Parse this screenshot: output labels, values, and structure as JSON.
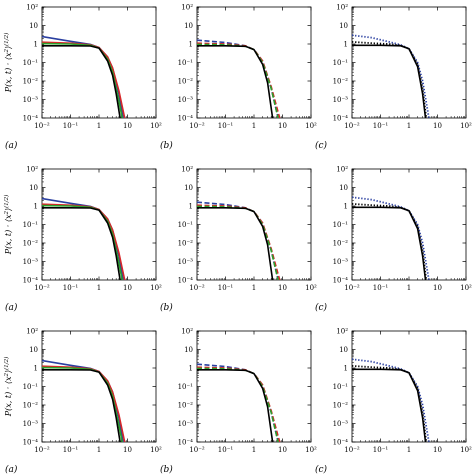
{
  "figure": {
    "ylabel_base": "P(x, t) · ⟨x",
    "ylabel_sup1": "2",
    "ylabel_close": "⟩",
    "ylabel_sup2": "(1/2)",
    "panel_letters": [
      "(a)",
      "(b)",
      "(c)"
    ]
  },
  "axes": {
    "type": "log-log",
    "xlim": [
      0.01,
      100
    ],
    "ylim": [
      0.0001,
      100
    ],
    "x_ticks": [
      0.01,
      0.1,
      1,
      10,
      100
    ],
    "x_tick_labels": [
      "10⁻²",
      "10⁻¹",
      "1",
      "10",
      "10²"
    ],
    "y_ticks": [
      0.0001,
      0.001,
      0.01,
      0.1,
      1,
      10,
      100
    ],
    "y_tick_labels": [
      "10⁻⁴",
      "10⁻³",
      "10⁻²",
      "10⁻¹",
      "1",
      "10",
      "10²"
    ],
    "grid": false
  },
  "chart_data": [
    {
      "type": "line",
      "panel": "(a)",
      "row": 0,
      "col": 0,
      "xlim": [
        0.01,
        100
      ],
      "ylim": [
        0.0001,
        100
      ],
      "xscale": "log",
      "yscale": "log",
      "series": [
        {
          "color": "#2a3fa0",
          "style": "solid",
          "x": [
            0.01,
            0.1,
            0.5,
            1,
            2,
            3,
            5,
            7
          ],
          "y": [
            2.5,
            1.4,
            0.95,
            0.65,
            0.2,
            0.05,
            0.002,
            0.0001
          ]
        },
        {
          "color": "#d62728",
          "style": "solid",
          "x": [
            0.01,
            0.1,
            0.5,
            1,
            2,
            3,
            5,
            8
          ],
          "y": [
            1.25,
            1.1,
            0.9,
            0.65,
            0.2,
            0.05,
            0.003,
            0.0001
          ]
        },
        {
          "color": "#2ca02c",
          "style": "solid",
          "x": [
            0.01,
            0.1,
            0.5,
            1,
            2,
            3,
            5,
            6.5
          ],
          "y": [
            1.05,
            1.0,
            0.85,
            0.6,
            0.15,
            0.03,
            0.0008,
            0.0001
          ]
        },
        {
          "color": "#000000",
          "style": "solid",
          "x": [
            0.01,
            0.1,
            0.5,
            1,
            2,
            3,
            4,
            5.5
          ],
          "y": [
            0.8,
            0.8,
            0.78,
            0.6,
            0.12,
            0.02,
            0.002,
            0.0001
          ]
        }
      ]
    },
    {
      "type": "line",
      "panel": "(b)",
      "row": 0,
      "col": 1,
      "xlim": [
        0.01,
        100
      ],
      "ylim": [
        0.0001,
        100
      ],
      "xscale": "log",
      "yscale": "log",
      "series": [
        {
          "color": "#2a3fa0",
          "style": "dashed",
          "x": [
            0.01,
            0.1,
            0.5,
            1,
            2,
            4,
            7
          ],
          "y": [
            1.6,
            1.2,
            0.8,
            0.5,
            0.12,
            0.004,
            0.0001
          ]
        },
        {
          "color": "#d62728",
          "style": "dashed",
          "x": [
            0.01,
            0.1,
            0.5,
            1,
            2,
            4,
            8
          ],
          "y": [
            1.1,
            1.0,
            0.8,
            0.5,
            0.12,
            0.005,
            0.0001
          ]
        },
        {
          "color": "#2ca02c",
          "style": "dashed",
          "x": [
            0.01,
            0.1,
            0.5,
            1,
            2,
            4,
            7
          ],
          "y": [
            0.95,
            0.9,
            0.75,
            0.5,
            0.1,
            0.004,
            0.0001
          ]
        },
        {
          "color": "#000000",
          "style": "solid",
          "x": [
            0.01,
            0.1,
            0.5,
            1,
            2,
            3,
            4.5
          ],
          "y": [
            0.8,
            0.8,
            0.75,
            0.5,
            0.08,
            0.008,
            0.0001
          ]
        }
      ]
    },
    {
      "type": "line",
      "panel": "(c)",
      "row": 0,
      "col": 2,
      "xlim": [
        0.01,
        100
      ],
      "ylim": [
        0.0001,
        100
      ],
      "xscale": "log",
      "yscale": "log",
      "series": [
        {
          "color": "#2a3fa0",
          "style": "dotted",
          "x": [
            0.01,
            0.05,
            0.2,
            0.5,
            1,
            2,
            3,
            5
          ],
          "y": [
            3,
            2.2,
            1.3,
            0.9,
            0.55,
            0.1,
            0.01,
            0.0001
          ]
        },
        {
          "color": "#000000",
          "style": "dotted",
          "x": [
            0.01,
            0.05,
            0.2,
            0.5,
            1,
            2,
            3,
            4
          ],
          "y": [
            1.3,
            1.1,
            1.0,
            0.85,
            0.55,
            0.08,
            0.004,
            0.0001
          ]
        },
        {
          "color": "#000000",
          "style": "solid",
          "x": [
            0.01,
            0.1,
            0.5,
            1,
            2,
            3,
            3.8
          ],
          "y": [
            0.85,
            0.85,
            0.8,
            0.55,
            0.06,
            0.002,
            0.0001
          ]
        }
      ]
    },
    {
      "type": "line",
      "panel": "(a)",
      "row": 1,
      "col": 0,
      "xlim": [
        0.01,
        100
      ],
      "ylim": [
        0.0001,
        100
      ],
      "xscale": "log",
      "yscale": "log",
      "series": [
        {
          "color": "#2a3fa0",
          "style": "solid",
          "x": [
            0.01,
            0.1,
            0.5,
            1,
            2,
            3,
            5,
            7
          ],
          "y": [
            2.5,
            1.4,
            0.95,
            0.65,
            0.2,
            0.05,
            0.002,
            0.0001
          ]
        },
        {
          "color": "#d62728",
          "style": "solid",
          "x": [
            0.01,
            0.1,
            0.5,
            1,
            2,
            3,
            5,
            8
          ],
          "y": [
            1.25,
            1.1,
            0.9,
            0.65,
            0.2,
            0.05,
            0.003,
            0.0001
          ]
        },
        {
          "color": "#2ca02c",
          "style": "solid",
          "x": [
            0.01,
            0.1,
            0.5,
            1,
            2,
            3,
            5,
            6.5
          ],
          "y": [
            1.05,
            1.0,
            0.85,
            0.6,
            0.15,
            0.03,
            0.0008,
            0.0001
          ]
        },
        {
          "color": "#000000",
          "style": "solid",
          "x": [
            0.01,
            0.1,
            0.5,
            1,
            2,
            3,
            4,
            5.5
          ],
          "y": [
            0.8,
            0.8,
            0.78,
            0.6,
            0.12,
            0.02,
            0.002,
            0.0001
          ]
        }
      ]
    },
    {
      "type": "line",
      "panel": "(b)",
      "row": 1,
      "col": 1,
      "xlim": [
        0.01,
        100
      ],
      "ylim": [
        0.0001,
        100
      ],
      "xscale": "log",
      "yscale": "log",
      "series": [
        {
          "color": "#2a3fa0",
          "style": "dashed",
          "x": [
            0.01,
            0.1,
            0.5,
            1,
            2,
            4,
            7
          ],
          "y": [
            1.6,
            1.2,
            0.8,
            0.5,
            0.12,
            0.004,
            0.0001
          ]
        },
        {
          "color": "#d62728",
          "style": "dashed",
          "x": [
            0.01,
            0.1,
            0.5,
            1,
            2,
            4,
            8
          ],
          "y": [
            1.1,
            1.0,
            0.8,
            0.5,
            0.12,
            0.005,
            0.0001
          ]
        },
        {
          "color": "#2ca02c",
          "style": "dashed",
          "x": [
            0.01,
            0.1,
            0.5,
            1,
            2,
            4,
            7
          ],
          "y": [
            0.95,
            0.9,
            0.75,
            0.5,
            0.1,
            0.004,
            0.0001
          ]
        },
        {
          "color": "#000000",
          "style": "solid",
          "x": [
            0.01,
            0.1,
            0.5,
            1,
            2,
            3,
            4.5
          ],
          "y": [
            0.8,
            0.8,
            0.75,
            0.5,
            0.08,
            0.008,
            0.0001
          ]
        }
      ]
    },
    {
      "type": "line",
      "panel": "(c)",
      "row": 1,
      "col": 2,
      "xlim": [
        0.01,
        100
      ],
      "ylim": [
        0.0001,
        100
      ],
      "xscale": "log",
      "yscale": "log",
      "series": [
        {
          "color": "#2a3fa0",
          "style": "dotted",
          "x": [
            0.01,
            0.05,
            0.2,
            0.5,
            1,
            2,
            3,
            5
          ],
          "y": [
            3,
            2.2,
            1.3,
            0.9,
            0.55,
            0.1,
            0.01,
            0.0001
          ]
        },
        {
          "color": "#000000",
          "style": "dotted",
          "x": [
            0.01,
            0.05,
            0.2,
            0.5,
            1,
            2,
            3,
            4
          ],
          "y": [
            1.3,
            1.1,
            1.0,
            0.85,
            0.55,
            0.08,
            0.004,
            0.0001
          ]
        },
        {
          "color": "#000000",
          "style": "solid",
          "x": [
            0.01,
            0.1,
            0.5,
            1,
            2,
            3,
            3.8
          ],
          "y": [
            0.85,
            0.85,
            0.8,
            0.55,
            0.06,
            0.002,
            0.0001
          ]
        }
      ]
    },
    {
      "type": "line",
      "panel": "(a)",
      "row": 2,
      "col": 0,
      "xlim": [
        0.01,
        100
      ],
      "ylim": [
        0.0001,
        100
      ],
      "xscale": "log",
      "yscale": "log",
      "series": [
        {
          "color": "#2a3fa0",
          "style": "solid",
          "x": [
            0.01,
            0.1,
            0.5,
            1,
            2,
            3,
            5,
            7
          ],
          "y": [
            2.5,
            1.4,
            0.95,
            0.65,
            0.2,
            0.05,
            0.002,
            0.0001
          ]
        },
        {
          "color": "#d62728",
          "style": "solid",
          "x": [
            0.01,
            0.1,
            0.5,
            1,
            2,
            3,
            5,
            8
          ],
          "y": [
            1.25,
            1.1,
            0.9,
            0.65,
            0.2,
            0.05,
            0.003,
            0.0001
          ]
        },
        {
          "color": "#2ca02c",
          "style": "solid",
          "x": [
            0.01,
            0.1,
            0.5,
            1,
            2,
            3,
            5,
            6.5
          ],
          "y": [
            1.05,
            1.0,
            0.85,
            0.6,
            0.15,
            0.03,
            0.0008,
            0.0001
          ]
        },
        {
          "color": "#000000",
          "style": "solid",
          "x": [
            0.01,
            0.1,
            0.5,
            1,
            2,
            3,
            4,
            5.5
          ],
          "y": [
            0.8,
            0.8,
            0.78,
            0.6,
            0.12,
            0.02,
            0.002,
            0.0001
          ]
        }
      ]
    },
    {
      "type": "line",
      "panel": "(b)",
      "row": 2,
      "col": 1,
      "xlim": [
        0.01,
        100
      ],
      "ylim": [
        0.0001,
        100
      ],
      "xscale": "log",
      "yscale": "log",
      "series": [
        {
          "color": "#2a3fa0",
          "style": "dashed",
          "x": [
            0.01,
            0.1,
            0.5,
            1,
            2,
            4,
            7
          ],
          "y": [
            1.6,
            1.2,
            0.8,
            0.5,
            0.12,
            0.004,
            0.0001
          ]
        },
        {
          "color": "#d62728",
          "style": "dashed",
          "x": [
            0.01,
            0.1,
            0.5,
            1,
            2,
            4,
            8
          ],
          "y": [
            1.1,
            1.0,
            0.8,
            0.5,
            0.12,
            0.005,
            0.0001
          ]
        },
        {
          "color": "#2ca02c",
          "style": "dashed",
          "x": [
            0.01,
            0.1,
            0.5,
            1,
            2,
            4,
            7
          ],
          "y": [
            0.95,
            0.9,
            0.75,
            0.5,
            0.1,
            0.004,
            0.0001
          ]
        },
        {
          "color": "#000000",
          "style": "solid",
          "x": [
            0.01,
            0.1,
            0.5,
            1,
            2,
            3,
            4.5
          ],
          "y": [
            0.8,
            0.8,
            0.75,
            0.5,
            0.08,
            0.008,
            0.0001
          ]
        }
      ]
    },
    {
      "type": "line",
      "panel": "(c)",
      "row": 2,
      "col": 2,
      "xlim": [
        0.01,
        100
      ],
      "ylim": [
        0.0001,
        100
      ],
      "xscale": "log",
      "yscale": "log",
      "series": [
        {
          "color": "#2a3fa0",
          "style": "dotted",
          "x": [
            0.01,
            0.05,
            0.2,
            0.5,
            1,
            2,
            3,
            5
          ],
          "y": [
            3,
            2.2,
            1.3,
            0.9,
            0.55,
            0.1,
            0.01,
            0.0001
          ]
        },
        {
          "color": "#000000",
          "style": "dotted",
          "x": [
            0.01,
            0.05,
            0.2,
            0.5,
            1,
            2,
            3,
            4
          ],
          "y": [
            1.3,
            1.1,
            1.0,
            0.85,
            0.55,
            0.08,
            0.004,
            0.0001
          ]
        },
        {
          "color": "#000000",
          "style": "solid",
          "x": [
            0.01,
            0.1,
            0.5,
            1,
            2,
            3,
            3.8
          ],
          "y": [
            0.85,
            0.85,
            0.8,
            0.55,
            0.06,
            0.002,
            0.0001
          ]
        }
      ]
    }
  ]
}
